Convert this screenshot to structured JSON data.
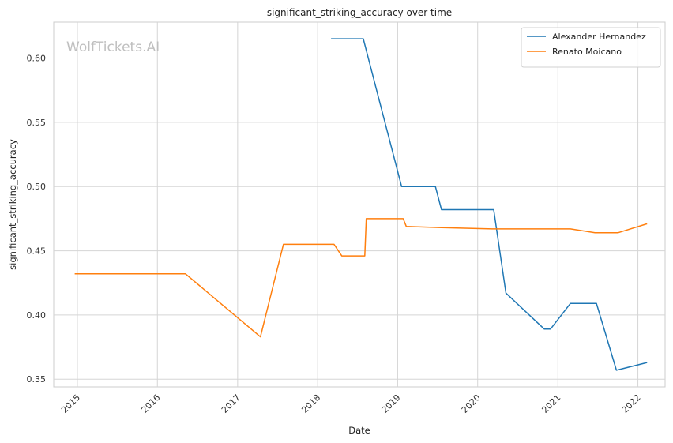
{
  "chart_data": {
    "type": "line",
    "title": "significant_striking_accuracy over time",
    "xlabel": "Date",
    "ylabel": "significant_striking_accuracy",
    "watermark": "WolfTickets.AI",
    "xlim": [
      "2014-09-15",
      "2022-05-05"
    ],
    "ylim": [
      0.344,
      0.628
    ],
    "x_ticks": [
      {
        "date": "2015-01-01",
        "label": "2015"
      },
      {
        "date": "2016-01-01",
        "label": "2016"
      },
      {
        "date": "2017-01-01",
        "label": "2017"
      },
      {
        "date": "2018-01-01",
        "label": "2018"
      },
      {
        "date": "2019-01-01",
        "label": "2019"
      },
      {
        "date": "2020-01-01",
        "label": "2020"
      },
      {
        "date": "2021-01-01",
        "label": "2021"
      },
      {
        "date": "2022-01-01",
        "label": "2022"
      }
    ],
    "y_ticks": [
      {
        "value": 0.35,
        "label": "0.35"
      },
      {
        "value": 0.4,
        "label": "0.40"
      },
      {
        "value": 0.45,
        "label": "0.45"
      },
      {
        "value": 0.5,
        "label": "0.50"
      },
      {
        "value": 0.55,
        "label": "0.55"
      },
      {
        "value": 0.6,
        "label": "0.60"
      }
    ],
    "grid": true,
    "legend_position": "top-right",
    "series": [
      {
        "name": "Alexander Hernandez",
        "color": "#1f77b4",
        "points": [
          {
            "x": "2018-03-03",
            "y": 0.615
          },
          {
            "x": "2018-07-28",
            "y": 0.615
          },
          {
            "x": "2019-01-19",
            "y": 0.5
          },
          {
            "x": "2019-06-22",
            "y": 0.5
          },
          {
            "x": "2019-07-20",
            "y": 0.482
          },
          {
            "x": "2020-03-14",
            "y": 0.482
          },
          {
            "x": "2020-05-09",
            "y": 0.417
          },
          {
            "x": "2020-10-31",
            "y": 0.389
          },
          {
            "x": "2020-11-28",
            "y": 0.389
          },
          {
            "x": "2021-02-27",
            "y": 0.409
          },
          {
            "x": "2021-06-26",
            "y": 0.409
          },
          {
            "x": "2021-09-25",
            "y": 0.357
          },
          {
            "x": "2022-02-12",
            "y": 0.363
          }
        ]
      },
      {
        "name": "Renato Moicano",
        "color": "#ff7f0e",
        "points": [
          {
            "x": "2014-12-20",
            "y": 0.432
          },
          {
            "x": "2016-05-08",
            "y": 0.432
          },
          {
            "x": "2017-04-15",
            "y": 0.383
          },
          {
            "x": "2017-07-29",
            "y": 0.455
          },
          {
            "x": "2018-03-17",
            "y": 0.455
          },
          {
            "x": "2018-04-21",
            "y": 0.446
          },
          {
            "x": "2018-08-04",
            "y": 0.446
          },
          {
            "x": "2018-08-11",
            "y": 0.475
          },
          {
            "x": "2019-01-26",
            "y": 0.475
          },
          {
            "x": "2019-02-09",
            "y": 0.469
          },
          {
            "x": "2019-07-20",
            "y": 0.468
          },
          {
            "x": "2020-03-07",
            "y": 0.467
          },
          {
            "x": "2020-10-31",
            "y": 0.467
          },
          {
            "x": "2021-02-27",
            "y": 0.467
          },
          {
            "x": "2021-06-19",
            "y": 0.464
          },
          {
            "x": "2021-10-02",
            "y": 0.464
          },
          {
            "x": "2022-02-12",
            "y": 0.471
          }
        ]
      }
    ]
  }
}
